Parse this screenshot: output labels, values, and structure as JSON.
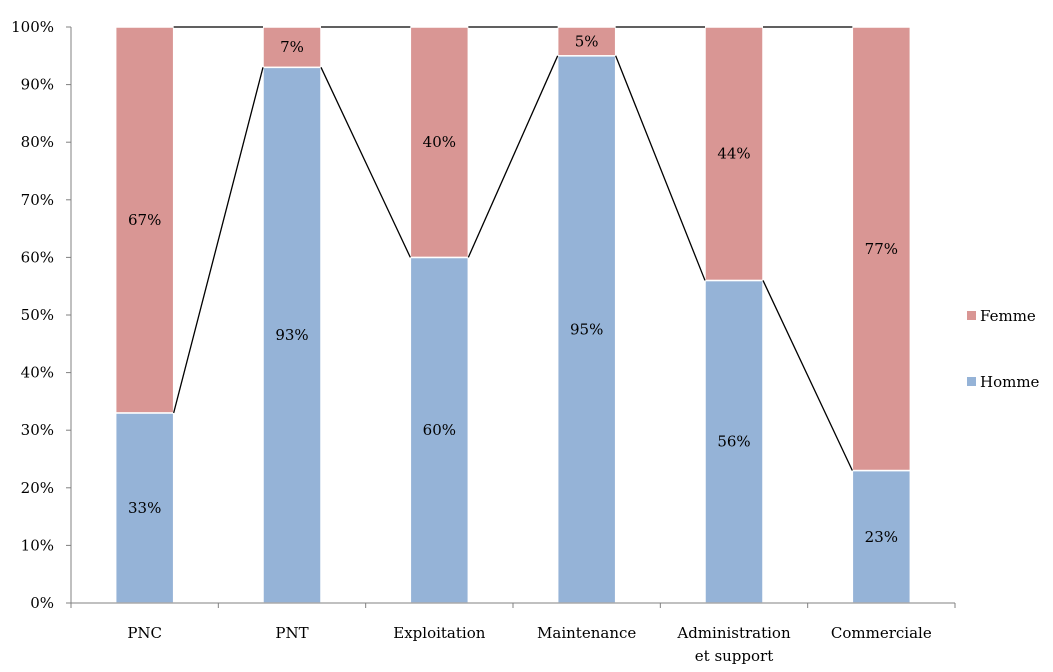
{
  "chart_data": {
    "type": "bar",
    "stacked": true,
    "orientation": "vertical",
    "title": "",
    "xlabel": "",
    "ylabel": "",
    "ylim": [
      0,
      100
    ],
    "y_ticks": [
      "0%",
      "10%",
      "20%",
      "30%",
      "40%",
      "50%",
      "60%",
      "70%",
      "80%",
      "90%",
      "100%"
    ],
    "y_tick_values": [
      0,
      10,
      20,
      30,
      40,
      50,
      60,
      70,
      80,
      90,
      100
    ],
    "grid": false,
    "legend_position": "right",
    "series_lines": true,
    "categories": [
      [
        "PNC"
      ],
      [
        "PNT"
      ],
      [
        "Exploitation"
      ],
      [
        "Maintenance"
      ],
      [
        "Administration",
        "et support"
      ],
      [
        "Commerciale"
      ]
    ],
    "series": [
      {
        "name": "Homme",
        "color": "#95B3D7",
        "values": [
          33,
          93,
          60,
          95,
          56,
          23
        ],
        "labels": [
          "33%",
          "93%",
          "60%",
          "95%",
          "56%",
          "23%"
        ]
      },
      {
        "name": "Femme",
        "color": "#D99694",
        "values": [
          67,
          7,
          40,
          5,
          44,
          77
        ],
        "labels": [
          "67%",
          "7%",
          "40%",
          "5%",
          "44%",
          "77%"
        ]
      }
    ],
    "legend": [
      {
        "name": "Femme",
        "color": "#D99694"
      },
      {
        "name": "Homme",
        "color": "#95B3D7"
      }
    ]
  }
}
